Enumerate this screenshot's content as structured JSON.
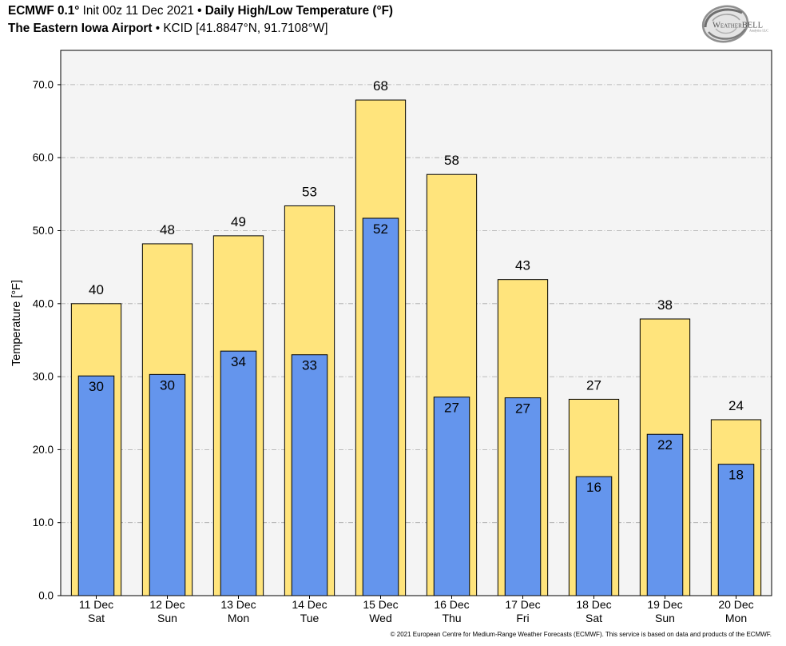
{
  "header": {
    "line1": {
      "model": "ECMWF 0.1°",
      "init": "Init 00z 11 Dec 2021",
      "product": "• Daily High/Low Temperature (°F)"
    },
    "line2": {
      "station": "The Eastern Iowa Airport",
      "location": "• KCID [41.8847°N, 91.7108°W]"
    }
  },
  "logo": {
    "wordmark": "WeatherBELL",
    "tagline": "Analytics LLC"
  },
  "chart_data": {
    "type": "bar",
    "categories": [
      {
        "date": "11 Dec",
        "day": "Sat"
      },
      {
        "date": "12 Dec",
        "day": "Sun"
      },
      {
        "date": "13 Dec",
        "day": "Mon"
      },
      {
        "date": "14 Dec",
        "day": "Tue"
      },
      {
        "date": "15 Dec",
        "day": "Wed"
      },
      {
        "date": "16 Dec",
        "day": "Thu"
      },
      {
        "date": "17 Dec",
        "day": "Fri"
      },
      {
        "date": "18 Dec",
        "day": "Sat"
      },
      {
        "date": "19 Dec",
        "day": "Sun"
      },
      {
        "date": "20 Dec",
        "day": "Mon"
      }
    ],
    "series": [
      {
        "values": [
          40.0,
          48.2,
          49.3,
          53.4,
          67.9,
          57.7,
          43.3,
          26.9,
          37.9,
          24.1
        ],
        "labels": [
          "40",
          "48",
          "49",
          "53",
          "68",
          "58",
          "43",
          "27",
          "38",
          "24"
        ],
        "color": "#ffe47c"
      },
      {
        "values": [
          30.1,
          30.3,
          33.5,
          33.0,
          51.7,
          27.2,
          27.1,
          16.3,
          22.1,
          18.0
        ],
        "labels": [
          "30",
          "30",
          "34",
          "33",
          "52",
          "27",
          "27",
          "16",
          "22",
          "18"
        ],
        "color": "#6495ed"
      }
    ],
    "xlabel": "",
    "ylabel": "Temperature [°F]",
    "ylim": [
      0,
      74.7
    ],
    "yticks": [
      0,
      10,
      20,
      30,
      40,
      50,
      60,
      70
    ],
    "ytick_labels": [
      "0.0",
      "10.0",
      "20.0",
      "30.0",
      "40.0",
      "50.0",
      "60.0",
      "70.0"
    ],
    "grid": true,
    "background": "#f4f4f4"
  },
  "footer": {
    "copyright": "© 2021 European Centre for Medium-Range Weather Forecasts (ECMWF). This service is based on data and products of the ECMWF."
  }
}
